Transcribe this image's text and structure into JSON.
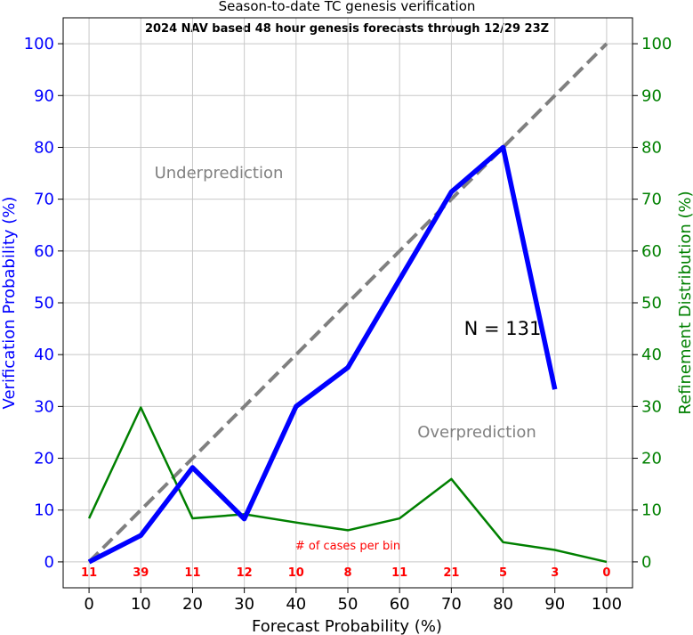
{
  "chart_data": {
    "type": "line",
    "title": "Season-to-date TC genesis verification",
    "subtitle": "2024 NAV based 48 hour genesis forecasts through 12/29 23Z",
    "xlabel": "Forecast Probability (%)",
    "ylabel_left": "Verification Probability (%)",
    "ylabel_right": "Refinement Distribution (%)",
    "xlim": [
      -5,
      105
    ],
    "ylim": [
      -5,
      105
    ],
    "x_ticks": [
      0,
      10,
      20,
      30,
      40,
      50,
      60,
      70,
      80,
      90,
      100
    ],
    "y_ticks": [
      0,
      10,
      20,
      30,
      40,
      50,
      60,
      70,
      80,
      90,
      100
    ],
    "grid": true,
    "series": [
      {
        "role": "verification",
        "color": "#0000ff",
        "x": [
          0,
          10,
          20,
          30,
          40,
          50,
          60,
          70,
          80,
          90
        ],
        "values": [
          0,
          5.1,
          18.2,
          8.3,
          30.0,
          37.5,
          54.5,
          71.4,
          80.0,
          33.3
        ]
      },
      {
        "role": "refinement",
        "color": "#008000",
        "x": [
          0,
          10,
          20,
          30,
          40,
          50,
          60,
          70,
          80,
          90,
          100
        ],
        "values": [
          8.4,
          29.8,
          8.4,
          9.2,
          7.6,
          6.1,
          8.4,
          16.0,
          3.8,
          2.3,
          0
        ]
      },
      {
        "role": "perfect-reliability",
        "color": "#808080",
        "x": [
          0,
          100
        ],
        "values": [
          0,
          100
        ]
      }
    ],
    "annotations": {
      "underprediction": "Underprediction",
      "overprediction": "Overprediction",
      "n_label": "N = 131",
      "cases_label": "# of cases per bin"
    },
    "cases_per_bin": {
      "x": [
        0,
        10,
        20,
        30,
        40,
        50,
        60,
        70,
        80,
        90,
        100
      ],
      "counts": [
        "11",
        "39",
        "11",
        "12",
        "10",
        "8",
        "11",
        "21",
        "5",
        "3",
        "0"
      ],
      "color": "#ff0000"
    },
    "colors": {
      "left_axis": "#0000ff",
      "right_axis": "#008000",
      "annotation_gray": "#808080",
      "grid": "#c8c8c8"
    }
  }
}
